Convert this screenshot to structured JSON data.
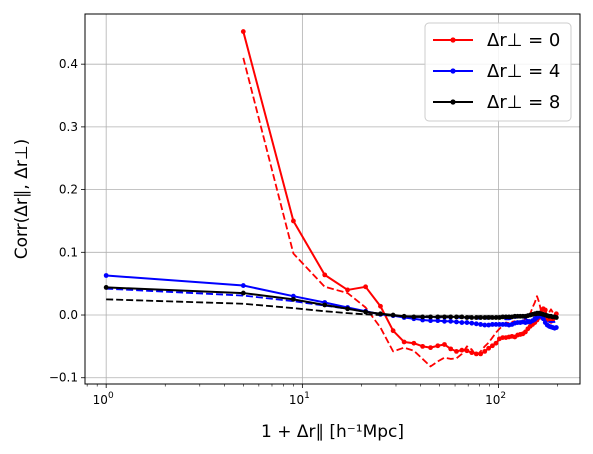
{
  "chart_data": {
    "type": "line",
    "title": "",
    "xlabel": "1 + Δr∥ [h⁻¹Mpc]",
    "ylabel": "Corr(Δr∥, Δr⊥)",
    "xscale": "log",
    "xlim": [
      0.78,
      260
    ],
    "ylim": [
      -0.11,
      0.48
    ],
    "grid": true,
    "legend_position": "top-right",
    "xticks": [
      {
        "value": 1,
        "base": "10",
        "exp": "0"
      },
      {
        "value": 10,
        "base": "10",
        "exp": "1"
      },
      {
        "value": 100,
        "base": "10",
        "exp": "2"
      }
    ],
    "yticks": [
      {
        "value": -0.1,
        "label": "−0.1"
      },
      {
        "value": 0.0,
        "label": "0.0"
      },
      {
        "value": 0.1,
        "label": "0.1"
      },
      {
        "value": 0.2,
        "label": "0.2"
      },
      {
        "value": 0.3,
        "label": "0.3"
      },
      {
        "value": 0.4,
        "label": "0.4"
      }
    ],
    "series": [
      {
        "name": "Δr⊥ = 0",
        "color": "#ff0000",
        "style": "solid",
        "marker": "dot",
        "x": [
          5,
          9,
          13,
          17,
          21,
          25,
          29,
          33,
          37,
          41,
          45,
          49,
          53,
          57,
          61,
          65,
          69,
          73,
          77,
          81,
          85,
          89,
          93,
          97,
          101,
          105,
          109,
          113,
          117,
          121,
          125,
          129,
          133,
          137,
          141,
          145,
          149,
          153,
          157,
          161,
          165,
          169,
          173,
          177,
          181,
          185,
          189,
          193,
          197
        ],
        "y": [
          0.452,
          0.15,
          0.064,
          0.04,
          0.045,
          0.014,
          -0.025,
          -0.043,
          -0.045,
          -0.05,
          -0.052,
          -0.049,
          -0.047,
          -0.054,
          -0.058,
          -0.056,
          -0.057,
          -0.06,
          -0.062,
          -0.062,
          -0.058,
          -0.053,
          -0.049,
          -0.045,
          -0.038,
          -0.036,
          -0.036,
          -0.035,
          -0.034,
          -0.035,
          -0.032,
          -0.031,
          -0.03,
          -0.027,
          -0.022,
          -0.018,
          -0.015,
          -0.012,
          -0.008,
          -0.004,
          0.004,
          0.01,
          0.008,
          -0.004,
          -0.008,
          -0.01,
          -0.007,
          -0.003,
          0.002
        ]
      },
      {
        "name": "Δr⊥ = 0 (dashed)",
        "color": "#ff0000",
        "style": "dashed",
        "marker": "none",
        "x": [
          5,
          9,
          13,
          17,
          21,
          25,
          29,
          33,
          37,
          41,
          45,
          49,
          53,
          57,
          61,
          65,
          69,
          73,
          77,
          81,
          85,
          89,
          93,
          97,
          101,
          105,
          109,
          113,
          117,
          121,
          125,
          129,
          133,
          137,
          141,
          145,
          149,
          153,
          157,
          161,
          165,
          169,
          173,
          177,
          181,
          185,
          189,
          193,
          197
        ],
        "y": [
          0.41,
          0.098,
          0.045,
          0.035,
          0.012,
          -0.02,
          -0.058,
          -0.052,
          -0.057,
          -0.07,
          -0.082,
          -0.074,
          -0.068,
          -0.07,
          -0.069,
          -0.062,
          -0.05,
          -0.055,
          -0.065,
          -0.058,
          -0.05,
          -0.044,
          -0.036,
          -0.028,
          -0.022,
          -0.017,
          -0.012,
          -0.013,
          -0.011,
          -0.01,
          -0.012,
          -0.011,
          -0.01,
          -0.006,
          -0.003,
          0.002,
          0.012,
          0.02,
          0.03,
          0.02,
          0.005,
          -0.008,
          -0.012,
          -0.006,
          0.004,
          0.009,
          0.004,
          0.0,
          0.004
        ]
      },
      {
        "name": "Δr⊥ = 4",
        "color": "#0000ff",
        "style": "solid",
        "marker": "dot",
        "x": [
          1,
          5,
          9,
          13,
          17,
          21,
          25,
          29,
          33,
          37,
          41,
          45,
          49,
          53,
          57,
          61,
          65,
          69,
          73,
          77,
          81,
          85,
          89,
          93,
          97,
          101,
          105,
          109,
          113,
          117,
          121,
          125,
          129,
          133,
          137,
          141,
          145,
          149,
          153,
          157,
          161,
          165,
          169,
          173,
          177,
          181,
          185,
          189,
          193,
          197
        ],
        "y": [
          0.063,
          0.047,
          0.03,
          0.02,
          0.012,
          0.006,
          0.001,
          -0.001,
          -0.004,
          -0.006,
          -0.008,
          -0.009,
          -0.009,
          -0.01,
          -0.01,
          -0.011,
          -0.012,
          -0.012,
          -0.013,
          -0.014,
          -0.015,
          -0.016,
          -0.016,
          -0.015,
          -0.015,
          -0.015,
          -0.015,
          -0.015,
          -0.016,
          -0.015,
          -0.013,
          -0.012,
          -0.012,
          -0.011,
          -0.012,
          -0.011,
          -0.011,
          -0.009,
          -0.007,
          -0.004,
          -0.002,
          -0.002,
          -0.006,
          -0.012,
          -0.016,
          -0.018,
          -0.019,
          -0.02,
          -0.021,
          -0.02
        ]
      },
      {
        "name": "Δr⊥ = 4 (dashed)",
        "color": "#0000ff",
        "style": "dashed",
        "marker": "none",
        "x": [
          1,
          5,
          9,
          13,
          17,
          21,
          25,
          29,
          33,
          37,
          41,
          45,
          49,
          53,
          57,
          61,
          65,
          69,
          73,
          77,
          81,
          85,
          89,
          93,
          97,
          101,
          105,
          109,
          113,
          117,
          121,
          125,
          129,
          133,
          137,
          141,
          145,
          149,
          153,
          157,
          161,
          165,
          169,
          173,
          177,
          181,
          185,
          189,
          193,
          197
        ],
        "y": [
          0.042,
          0.031,
          0.022,
          0.015,
          0.01,
          0.005,
          0.002,
          -0.001,
          -0.002,
          -0.003,
          -0.003,
          -0.004,
          -0.004,
          -0.004,
          -0.004,
          -0.004,
          -0.005,
          -0.005,
          -0.005,
          -0.006,
          -0.006,
          -0.006,
          -0.006,
          -0.005,
          -0.005,
          -0.005,
          -0.006,
          -0.007,
          -0.007,
          -0.006,
          -0.005,
          -0.004,
          -0.004,
          -0.004,
          -0.006,
          -0.008,
          -0.008,
          -0.006,
          -0.003,
          0.0,
          0.002,
          0.0,
          -0.004,
          -0.008,
          -0.01,
          -0.011,
          -0.011,
          -0.011,
          -0.011,
          -0.01
        ]
      },
      {
        "name": "Δr⊥ = 8",
        "color": "#000000",
        "style": "solid",
        "marker": "dot",
        "x": [
          1,
          5,
          9,
          13,
          17,
          21,
          25,
          29,
          33,
          37,
          41,
          45,
          49,
          53,
          57,
          61,
          65,
          69,
          73,
          77,
          81,
          85,
          89,
          93,
          97,
          101,
          105,
          109,
          113,
          117,
          121,
          125,
          129,
          133,
          137,
          141,
          145,
          149,
          153,
          157,
          161,
          165,
          169,
          173,
          177,
          181,
          185,
          189,
          193,
          197
        ],
        "y": [
          0.044,
          0.035,
          0.025,
          0.016,
          0.01,
          0.005,
          0.002,
          0.0,
          -0.002,
          -0.003,
          -0.003,
          -0.003,
          -0.003,
          -0.003,
          -0.003,
          -0.003,
          -0.003,
          -0.004,
          -0.004,
          -0.004,
          -0.004,
          -0.004,
          -0.004,
          -0.004,
          -0.004,
          -0.004,
          -0.003,
          -0.003,
          -0.003,
          -0.003,
          -0.002,
          -0.002,
          -0.002,
          -0.002,
          -0.002,
          -0.001,
          0.0,
          0.001,
          0.002,
          0.003,
          0.003,
          0.002,
          0.001,
          0.0,
          -0.001,
          -0.002,
          -0.002,
          -0.003,
          -0.003,
          -0.004
        ]
      },
      {
        "name": "Δr⊥ = 8 (dashed)",
        "color": "#000000",
        "style": "dashed",
        "marker": "none",
        "x": [
          1,
          5,
          9,
          13,
          17,
          21,
          25,
          29,
          33,
          37,
          41,
          45,
          49,
          53,
          57,
          61,
          65,
          69,
          73,
          77,
          81,
          85,
          89,
          93,
          97,
          101,
          105,
          109,
          113,
          117,
          121,
          125,
          129,
          133,
          137,
          141,
          145,
          149,
          153,
          157,
          161,
          165,
          169,
          173,
          177,
          181,
          185,
          189,
          193,
          197
        ],
        "y": [
          0.025,
          0.018,
          0.011,
          0.006,
          0.003,
          0.001,
          0.0,
          -0.001,
          -0.002,
          -0.002,
          -0.002,
          -0.002,
          -0.002,
          -0.002,
          -0.002,
          -0.002,
          -0.002,
          -0.002,
          -0.002,
          -0.002,
          -0.002,
          -0.002,
          -0.002,
          -0.002,
          -0.002,
          -0.002,
          -0.002,
          -0.002,
          -0.002,
          -0.002,
          -0.002,
          -0.002,
          -0.002,
          -0.002,
          -0.002,
          -0.002,
          -0.001,
          -0.001,
          -0.001,
          0.0,
          0.0,
          0.0,
          -0.001,
          -0.001,
          -0.001,
          -0.002,
          -0.002,
          -0.002,
          -0.002,
          -0.002
        ]
      }
    ],
    "legend": [
      {
        "label": "Δr⊥ = 0",
        "color": "#ff0000"
      },
      {
        "label": "Δr⊥ = 4",
        "color": "#0000ff"
      },
      {
        "label": "Δr⊥ = 8",
        "color": "#000000"
      }
    ]
  }
}
